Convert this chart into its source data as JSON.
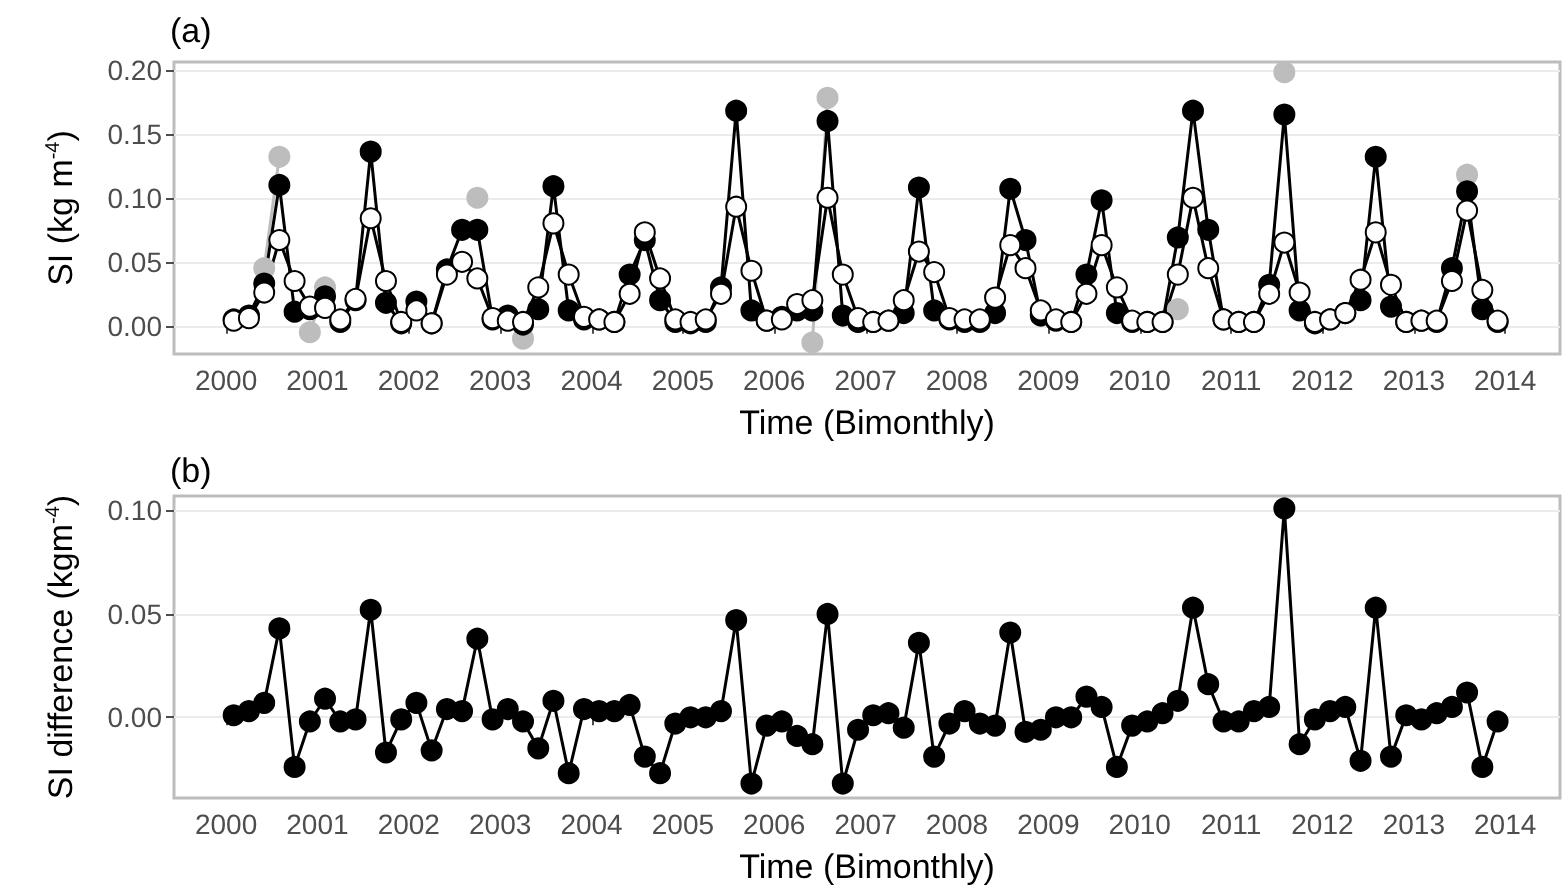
{
  "chart_data": [
    {
      "type": "line",
      "title": "(a)",
      "xlabel": "Time (Bimonthly)",
      "ylabel": "SI (kg m$^{-4}$)",
      "x": [
        2000.083,
        2000.25,
        2000.417,
        2000.583,
        2000.75,
        2000.917,
        2001.083,
        2001.25,
        2001.417,
        2001.583,
        2001.75,
        2001.917,
        2002.083,
        2002.25,
        2002.417,
        2002.583,
        2002.75,
        2002.917,
        2003.083,
        2003.25,
        2003.417,
        2003.583,
        2003.75,
        2003.917,
        2004.083,
        2004.25,
        2004.417,
        2004.583,
        2004.75,
        2004.917,
        2005.083,
        2005.25,
        2005.417,
        2005.583,
        2005.75,
        2005.917,
        2006.083,
        2006.25,
        2006.417,
        2006.583,
        2006.75,
        2006.917,
        2007.083,
        2007.25,
        2007.417,
        2007.583,
        2007.75,
        2007.917,
        2008.083,
        2008.25,
        2008.417,
        2008.583,
        2008.75,
        2008.917,
        2009.083,
        2009.25,
        2009.417,
        2009.583,
        2009.75,
        2009.917,
        2010.083,
        2010.25,
        2010.417,
        2010.583,
        2010.75,
        2010.917,
        2011.083,
        2011.25,
        2011.417,
        2011.583,
        2011.75,
        2011.917,
        2012.083,
        2012.25,
        2012.417,
        2012.583,
        2012.75,
        2012.917,
        2013.083,
        2013.25,
        2013.417,
        2013.583,
        2013.75,
        2013.917
      ],
      "series": [
        {
          "color": "#bdbdbd",
          "values": [
            null,
            null,
            0.045,
            0.132,
            null,
            -0.005,
            0.03,
            null,
            null,
            null,
            null,
            null,
            null,
            null,
            null,
            null,
            0.1,
            null,
            null,
            -0.01,
            null,
            null,
            null,
            null,
            null,
            null,
            null,
            null,
            null,
            null,
            null,
            null,
            null,
            null,
            null,
            null,
            null,
            null,
            -0.013,
            0.178,
            null,
            null,
            null,
            null,
            null,
            null,
            null,
            null,
            null,
            null,
            null,
            null,
            null,
            null,
            null,
            null,
            null,
            null,
            null,
            null,
            null,
            null,
            0.013,
            null,
            null,
            null,
            null,
            null,
            null,
            0.198,
            null,
            null,
            null,
            null,
            null,
            null,
            null,
            null,
            null,
            null,
            null,
            0.118,
            null,
            null
          ]
        },
        {
          "color": "#000000",
          "values": [
            0.005,
            0.008,
            0.033,
            0.11,
            0.011,
            0.013,
            0.023,
            0.003,
            0.02,
            0.136,
            0.018,
            0.002,
            0.019,
            0.002,
            0.044,
            0.075,
            0.075,
            0.005,
            0.008,
            0.001,
            0.013,
            0.109,
            0.012,
            0.005,
            0.005,
            0.003,
            0.04,
            0.067,
            0.02,
            0.003,
            0.002,
            0.003,
            0.03,
            0.168,
            0.012,
            0.004,
            0.007,
            0.012,
            0.012,
            0.16,
            0.008,
            0.003,
            0.003,
            0.004,
            0.01,
            0.108,
            0.012,
            0.005,
            0.003,
            0.003,
            0.01,
            0.107,
            0.067,
            0.008,
            0.004,
            0.003,
            0.04,
            0.098,
            0.01,
            0.003,
            0.003,
            0.003,
            0.069,
            0.168,
            0.075,
            0.005,
            0.003,
            0.003,
            0.032,
            0.165,
            0.012,
            0.002,
            0.005,
            0.01,
            0.02,
            0.132,
            0.015,
            0.003,
            0.004,
            0.003,
            0.045,
            0.105,
            0.013,
            0.003
          ]
        },
        {
          "color": "#ffffff",
          "values": [
            0.004,
            0.006,
            0.026,
            0.067,
            0.035,
            0.015,
            0.014,
            0.005,
            0.021,
            0.084,
            0.035,
            0.003,
            0.012,
            0.002,
            0.04,
            0.05,
            0.037,
            0.006,
            0.004,
            0.003,
            0.03,
            0.08,
            0.04,
            0.007,
            0.005,
            0.003,
            0.025,
            0.073,
            0.037,
            0.005,
            0.003,
            0.005,
            0.025,
            0.093,
            0.043,
            0.004,
            0.005,
            0.017,
            0.02,
            0.1,
            0.04,
            0.006,
            0.003,
            0.004,
            0.02,
            0.058,
            0.042,
            0.006,
            0.005,
            0.005,
            0.022,
            0.063,
            0.045,
            0.012,
            0.005,
            0.003,
            0.025,
            0.063,
            0.03,
            0.004,
            0.003,
            0.003,
            0.04,
            0.1,
            0.045,
            0.005,
            0.003,
            0.003,
            0.025,
            0.065,
            0.026,
            0.003,
            0.005,
            0.01,
            0.036,
            0.073,
            0.032,
            0.003,
            0.004,
            0.004,
            0.035,
            0.09,
            0.028,
            0.004
          ]
        }
      ],
      "xlim": [
        1999.43,
        2014.6
      ],
      "xticks": [
        2000,
        2001,
        2002,
        2003,
        2004,
        2005,
        2006,
        2007,
        2008,
        2009,
        2010,
        2011,
        2012,
        2013,
        2014
      ],
      "ylim": [
        -0.022,
        0.206
      ],
      "yticks": [
        {
          "value": 0,
          "label": "0.00"
        },
        {
          "value": 0.05,
          "label": "0.05"
        },
        {
          "value": 0.1,
          "label": "0.10"
        },
        {
          "value": 0.15,
          "label": "0.15"
        },
        {
          "value": 0.2,
          "label": "0.20"
        }
      ],
      "grid": "y",
      "marker": "circle",
      "line_style": "solid"
    },
    {
      "type": "line",
      "title": "(b)",
      "xlabel": "Time (Bimonthly)",
      "ylabel": "SI difference (kgm$^{-4}$)",
      "x": [
        2000.083,
        2000.25,
        2000.417,
        2000.583,
        2000.75,
        2000.917,
        2001.083,
        2001.25,
        2001.417,
        2001.583,
        2001.75,
        2001.917,
        2002.083,
        2002.25,
        2002.417,
        2002.583,
        2002.75,
        2002.917,
        2003.083,
        2003.25,
        2003.417,
        2003.583,
        2003.75,
        2003.917,
        2004.083,
        2004.25,
        2004.417,
        2004.583,
        2004.75,
        2004.917,
        2005.083,
        2005.25,
        2005.417,
        2005.583,
        2005.75,
        2005.917,
        2006.083,
        2006.25,
        2006.417,
        2006.583,
        2006.75,
        2006.917,
        2007.083,
        2007.25,
        2007.417,
        2007.583,
        2007.75,
        2007.917,
        2008.083,
        2008.25,
        2008.417,
        2008.583,
        2008.75,
        2008.917,
        2009.083,
        2009.25,
        2009.417,
        2009.583,
        2009.75,
        2009.917,
        2010.083,
        2010.25,
        2010.417,
        2010.583,
        2010.75,
        2010.917,
        2011.083,
        2011.25,
        2011.417,
        2011.583,
        2011.75,
        2011.917,
        2012.083,
        2012.25,
        2012.417,
        2012.583,
        2012.75,
        2012.917,
        2013.083,
        2013.25,
        2013.417,
        2013.583,
        2013.75,
        2013.917
      ],
      "series": [
        {
          "color": "#000000",
          "values": [
            0.001,
            0.003,
            0.007,
            0.043,
            -0.024,
            -0.002,
            0.009,
            -0.002,
            -0.001,
            0.052,
            -0.017,
            -0.001,
            0.007,
            -0.016,
            0.004,
            0.003,
            0.038,
            -0.001,
            0.004,
            -0.002,
            -0.015,
            0.008,
            -0.027,
            0.004,
            0.003,
            0.003,
            0.006,
            -0.019,
            -0.027,
            -0.003,
            0,
            0,
            0.003,
            0.047,
            -0.032,
            -0.004,
            -0.002,
            -0.009,
            -0.013,
            0.05,
            -0.032,
            -0.006,
            0.001,
            0.002,
            -0.005,
            0.036,
            -0.019,
            -0.003,
            0.003,
            -0.003,
            -0.004,
            0.041,
            -0.007,
            -0.006,
            0,
            0,
            0.01,
            0.005,
            -0.024,
            -0.004,
            -0.002,
            0.002,
            0.008,
            0.053,
            0.016,
            -0.002,
            -0.002,
            0.003,
            0.005,
            0.101,
            -0.013,
            -0.001,
            0.003,
            0.005,
            -0.021,
            0.053,
            -0.019,
            0.001,
            -0.001,
            0.002,
            0.005,
            0.012,
            -0.024,
            -0.002
          ]
        }
      ],
      "xlim": [
        1999.43,
        2014.6
      ],
      "xticks": [
        2000,
        2001,
        2002,
        2003,
        2004,
        2005,
        2006,
        2007,
        2008,
        2009,
        2010,
        2011,
        2012,
        2013,
        2014
      ],
      "ylim": [
        -0.039,
        0.107
      ],
      "yticks": [
        {
          "value": 0,
          "label": "0.00"
        },
        {
          "value": 0.05,
          "label": "0.05"
        },
        {
          "value": 0.1,
          "label": "0.10"
        }
      ],
      "grid": "y",
      "marker": "circle",
      "line_style": "solid"
    }
  ]
}
